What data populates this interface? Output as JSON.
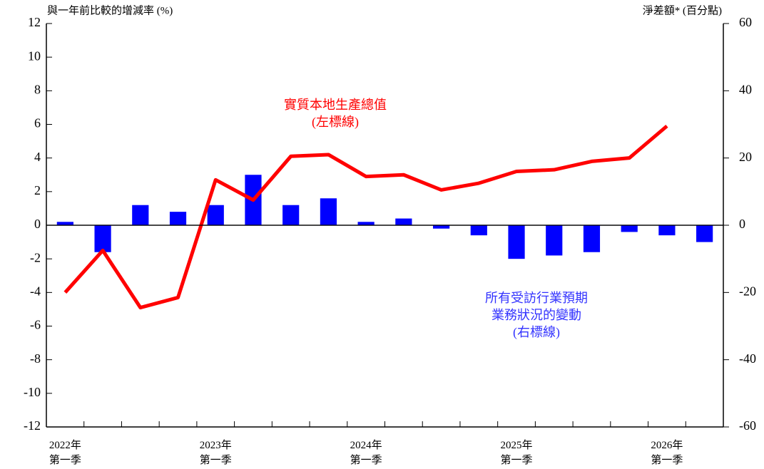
{
  "chart_data": {
    "type": "bar-line",
    "y_label": "與一年前比較的增減率 (%)",
    "y2_label": "淨差額* (百分點)",
    "categories": [
      "2022年\n第一季",
      null,
      null,
      null,
      "2023年\n第一季",
      null,
      null,
      null,
      "2024年\n第一季",
      null,
      null,
      null,
      "2025年\n第一季",
      null,
      null,
      null,
      "2026年\n第一季",
      null
    ],
    "series": [
      {
        "type": "bar",
        "axis": "y2",
        "color": "#0000ff",
        "values": [
          1,
          -8,
          6,
          4,
          6,
          15,
          6,
          8,
          1,
          2,
          -1,
          -3,
          -10,
          -9,
          -8,
          -2,
          -3,
          -5
        ]
      },
      {
        "type": "line",
        "axis": "y",
        "color": "#ff0000",
        "values": [
          -4.0,
          -1.5,
          -4.9,
          -4.3,
          2.7,
          1.5,
          4.1,
          4.2,
          2.9,
          3.0,
          2.1,
          2.5,
          3.2,
          3.3,
          3.8,
          4.0,
          5.9,
          null
        ]
      }
    ],
    "annotations": [
      {
        "text": "實質本地生產總值\n(左標線)",
        "color": "#ff0000",
        "series": 1
      },
      {
        "text": "所有受訪行業預期\n業務狀況的變動\n(右標線)",
        "color": "#3333ff",
        "series": 0
      }
    ],
    "ylim": [
      -12,
      12
    ],
    "yticks": [
      -12,
      -10,
      -8,
      -6,
      -4,
      -2,
      0,
      2,
      4,
      6,
      8,
      10,
      12
    ],
    "y2lim": [
      -60,
      60
    ],
    "y2ticks": [
      -60,
      -40,
      -20,
      0,
      20,
      40,
      60
    ]
  }
}
